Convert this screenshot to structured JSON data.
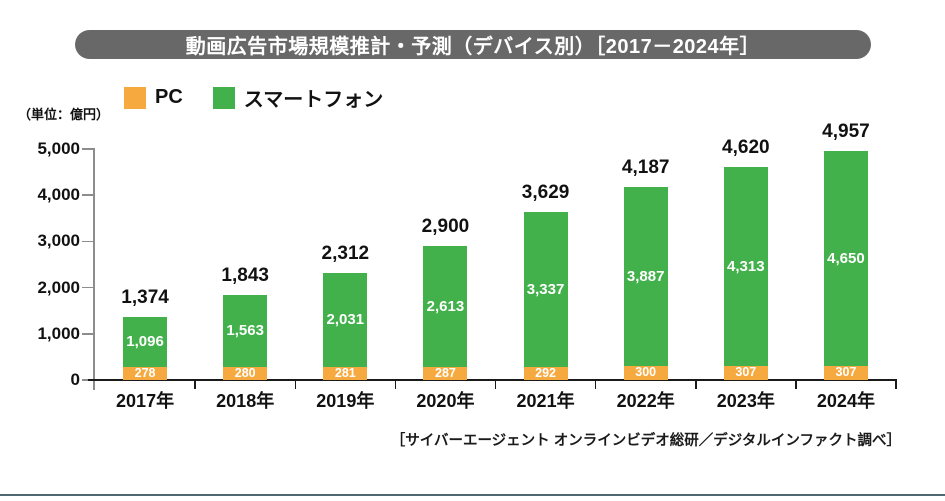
{
  "banner": {
    "title": "動画広告市場規模推計・予測（デバイス別）［2017－2024年］"
  },
  "unit_label": "（単位：億円）",
  "legend": {
    "items": [
      {
        "label": "PC",
        "color": "#f6a93e"
      },
      {
        "label": "スマートフォン",
        "color": "#43b14b"
      }
    ]
  },
  "chart_data": {
    "type": "bar",
    "stacked": true,
    "title": "動画広告市場規模推計・予測（デバイス別）［2017－2024年］",
    "categories": [
      "2017年",
      "2018年",
      "2019年",
      "2020年",
      "2021年",
      "2022年",
      "2023年",
      "2024年"
    ],
    "series": [
      {
        "name": "PC",
        "color": "#f6a93e",
        "values": [
          278,
          280,
          281,
          287,
          292,
          300,
          307,
          307
        ]
      },
      {
        "name": "スマートフォン",
        "color": "#43b14b",
        "values": [
          1096,
          1563,
          2031,
          2613,
          3337,
          3887,
          4313,
          4650
        ]
      }
    ],
    "totals": [
      1374,
      1843,
      2312,
      2900,
      3629,
      4187,
      4620,
      4957
    ],
    "xlabel": "",
    "ylabel": "（単位：億円）",
    "ylim": [
      0,
      5000
    ],
    "yticks": [
      0,
      1000,
      2000,
      3000,
      4000,
      5000
    ],
    "grid": false,
    "legend_position": "top-left",
    "value_label_style": "white values inside segments, bold totals above bars"
  },
  "source": "［サイバーエージェント オンラインビデオ総研／デジタルインファクト調べ］",
  "colors": {
    "banner": "#686868",
    "pc": "#f6a93e",
    "smartphone": "#43b14b",
    "y_axis": "#8c8c8c",
    "x_axis": "#1a1a1a",
    "bottom_rule": "#4f6673",
    "text": "#111111"
  }
}
